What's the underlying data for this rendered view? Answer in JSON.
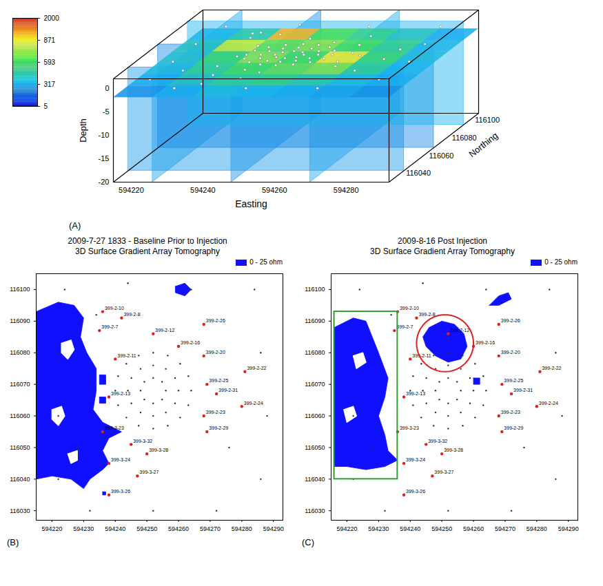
{
  "chart_data": [
    {
      "type": "fence3d",
      "panel": "(A)",
      "x_label": "Easting",
      "y_label": "Northing",
      "z_label": "Depth",
      "xlim": [
        594215,
        594292
      ],
      "ylim": [
        116030,
        116108
      ],
      "zlim": [
        -20,
        2
      ],
      "xticks": [
        594220,
        594240,
        594260,
        594280
      ],
      "yticks": [
        116040,
        116060,
        116080,
        116100
      ],
      "zticks": [
        0,
        -5,
        -10,
        -15,
        -20
      ],
      "colorbar": {
        "range": [
          5,
          2000
        ],
        "ticks": [
          5,
          317,
          593,
          871,
          2000
        ],
        "colors": [
          "#0a14c8",
          "#19b4f0",
          "#3cdc5a",
          "#f0f028",
          "#e61e0a"
        ]
      },
      "vertical_slices": [
        {
          "axis": "x",
          "at": 594226,
          "value": 280
        },
        {
          "axis": "x",
          "at": 594248,
          "value": 240
        },
        {
          "axis": "x",
          "at": 594270,
          "value": 300
        },
        {
          "axis": "y",
          "at": 116043,
          "value": 260
        },
        {
          "axis": "y",
          "at": 116069,
          "value": 230
        },
        {
          "axis": "y",
          "at": 116095,
          "value": 320
        }
      ],
      "horizontal_slice": {
        "depth": -2,
        "x_edges": [
          594215,
          594226,
          594237,
          594248,
          594259,
          594270,
          594281,
          594292
        ],
        "y_edges": [
          116030,
          116043,
          116056,
          116069,
          116082,
          116095,
          116108
        ],
        "values": [
          [
            250,
            300,
            350,
            320,
            300,
            280,
            250
          ],
          [
            300,
            400,
            480,
            520,
            450,
            350,
            300
          ],
          [
            350,
            500,
            600,
            650,
            700,
            480,
            320
          ],
          [
            380,
            550,
            700,
            600,
            900,
            550,
            350
          ],
          [
            400,
            800,
            650,
            700,
            600,
            500,
            330
          ],
          [
            330,
            450,
            1200,
            600,
            500,
            400,
            300
          ]
        ]
      }
    },
    {
      "type": "map",
      "panel": "(B)",
      "title": "2009-7-27 1833 - Baseline Prior to Injection",
      "subtitle": "3D Surface Gradient Array Tomography",
      "legend": "top",
      "legend_label": "0 - 25 ohm",
      "color": "#1010ff",
      "xlim": [
        594215,
        594293
      ],
      "ylim": [
        116027,
        116105
      ],
      "xticks": [
        594220,
        594230,
        594240,
        594250,
        594260,
        594270,
        594280,
        594290
      ],
      "yticks": [
        116030,
        116040,
        116050,
        116060,
        116070,
        116080,
        116090,
        116100
      ],
      "anomalies": [
        [
          [
            594215,
            116093
          ],
          [
            594222,
            116096
          ],
          [
            594227,
            116095
          ],
          [
            594230,
            116091
          ],
          [
            594229,
            116085
          ],
          [
            594231,
            116080
          ],
          [
            594234,
            116075
          ],
          [
            594234,
            116068
          ],
          [
            594233,
            116062
          ],
          [
            594236,
            116058
          ],
          [
            594242,
            116055
          ],
          [
            594238,
            116053
          ],
          [
            594236,
            116049
          ],
          [
            594238,
            116045
          ],
          [
            594236,
            116043
          ],
          [
            594232,
            116040
          ],
          [
            594230,
            116037
          ],
          [
            594226,
            116040
          ],
          [
            594220,
            116041
          ],
          [
            594215,
            116040
          ]
        ],
        [
          [
            594235,
            116073
          ],
          [
            594237,
            116073
          ],
          [
            594237,
            116070
          ],
          [
            594235,
            116070
          ]
        ],
        [
          [
            594235,
            116066
          ],
          [
            594237,
            116066
          ],
          [
            594237,
            116064
          ],
          [
            594235,
            116064
          ]
        ],
        [
          [
            594259,
            116101
          ],
          [
            594262,
            116102
          ],
          [
            594264,
            116100
          ],
          [
            594262,
            116098
          ],
          [
            594259,
            116099
          ]
        ],
        [
          [
            594236,
            116036
          ],
          [
            594237,
            116036
          ],
          [
            594237,
            116035
          ],
          [
            594236,
            116035
          ]
        ]
      ],
      "holes": [
        [
          [
            594223,
            116083
          ],
          [
            594226,
            116084
          ],
          [
            594227,
            116081
          ],
          [
            594225,
            116078
          ],
          [
            594223,
            116080
          ]
        ],
        [
          [
            594220,
            116062
          ],
          [
            594223,
            116063
          ],
          [
            594224,
            116060
          ],
          [
            594222,
            116057
          ],
          [
            594220,
            116059
          ]
        ],
        [
          [
            594225,
            116048
          ],
          [
            594228,
            116049
          ],
          [
            594228,
            116046
          ],
          [
            594226,
            116045
          ]
        ]
      ]
    },
    {
      "type": "map",
      "panel": "(C)",
      "title": "2009-8-16 Post Injection",
      "subtitle": "3D Surface Gradient Array Tomography",
      "legend": "top",
      "legend_label": "0 - 25 ohm",
      "color": "#1010ff",
      "xlim": [
        594215,
        594293
      ],
      "ylim": [
        116027,
        116105
      ],
      "xticks": [
        594220,
        594230,
        594240,
        594250,
        594260,
        594270,
        594280,
        594290
      ],
      "yticks": [
        116030,
        116040,
        116050,
        116060,
        116070,
        116080,
        116090,
        116100
      ],
      "anomalies": [
        [
          [
            594216,
            116088
          ],
          [
            594222,
            116091
          ],
          [
            594226,
            116090
          ],
          [
            594228,
            116085
          ],
          [
            594230,
            116080
          ],
          [
            594233,
            116072
          ],
          [
            594232,
            116066
          ],
          [
            594230,
            116060
          ],
          [
            594232,
            116054
          ],
          [
            594233,
            116049
          ],
          [
            594236,
            116046
          ],
          [
            594232,
            116044
          ],
          [
            594226,
            116043
          ],
          [
            594220,
            116044
          ],
          [
            594216,
            116044
          ]
        ],
        [
          [
            594246,
            116088
          ],
          [
            594250,
            116090
          ],
          [
            594254,
            116089
          ],
          [
            594257,
            116086
          ],
          [
            594258,
            116082
          ],
          [
            594256,
            116078
          ],
          [
            594252,
            116077
          ],
          [
            594248,
            116079
          ],
          [
            594245,
            116082
          ],
          [
            594244,
            116085
          ]
        ],
        [
          [
            594265,
            116095
          ],
          [
            594268,
            116098
          ],
          [
            594271,
            116099
          ],
          [
            594272,
            116097
          ],
          [
            594268,
            116095
          ]
        ],
        [
          [
            594260,
            116072
          ],
          [
            594262,
            116072
          ],
          [
            594262,
            116070
          ],
          [
            594260,
            116070
          ]
        ]
      ],
      "holes": [
        [
          [
            594222,
            116079
          ],
          [
            594225,
            116080
          ],
          [
            594226,
            116077
          ],
          [
            594223,
            116075
          ]
        ],
        [
          [
            594219,
            116062
          ],
          [
            594222,
            116063
          ],
          [
            594223,
            116060
          ],
          [
            594220,
            116058
          ]
        ]
      ],
      "box": {
        "x": [
          594216,
          594236
        ],
        "y": [
          116040,
          116093
        ],
        "color": "#2ca02c"
      },
      "circle": {
        "center": [
          594251,
          116083
        ],
        "radius": 9,
        "color": "#e02020"
      }
    }
  ],
  "electrodes": [
    [
      594256,
      116068
    ],
    [
      594254.8,
      116070.8
    ],
    [
      594252,
      116072
    ],
    [
      594249.2,
      116070.8
    ],
    [
      594248,
      116068
    ],
    [
      594249.2,
      116065.2
    ],
    [
      594252,
      116064
    ],
    [
      594254.8,
      116065.2
    ],
    [
      594260,
      116068
    ],
    [
      594258.9,
      116072
    ],
    [
      594256,
      116074.9
    ],
    [
      594252,
      116076
    ],
    [
      594248,
      116074.9
    ],
    [
      594245.1,
      116072
    ],
    [
      594244,
      116068
    ],
    [
      594245.1,
      116064
    ],
    [
      594248,
      116061.1
    ],
    [
      594252,
      116060
    ],
    [
      594256,
      116061.1
    ],
    [
      594258.9,
      116064
    ],
    [
      594264,
      116068
    ],
    [
      594263.1,
      116072.6
    ],
    [
      594260.5,
      116076.5
    ],
    [
      594256.6,
      116079.1
    ],
    [
      594252,
      116080
    ],
    [
      594247.4,
      116079.1
    ],
    [
      594243.5,
      116076.5
    ],
    [
      594240.9,
      116072.6
    ],
    [
      594240,
      116068
    ],
    [
      594240.9,
      116063.4
    ],
    [
      594243.5,
      116059.5
    ],
    [
      594247.4,
      116056.9
    ],
    [
      594252,
      116056
    ],
    [
      594256.6,
      116056.9
    ],
    [
      594260.5,
      116059.5
    ],
    [
      594263.1,
      116063.4
    ],
    [
      594224,
      116100
    ],
    [
      594244,
      116102
    ],
    [
      594264,
      116100
    ],
    [
      594284,
      116100
    ],
    [
      594222,
      116080
    ],
    [
      594286,
      116080
    ],
    [
      594222,
      116060
    ],
    [
      594288,
      116060
    ],
    [
      594222,
      116040
    ],
    [
      594286,
      116040
    ],
    [
      594232,
      116030
    ],
    [
      594252,
      116030
    ],
    [
      594272,
      116030
    ],
    [
      594234,
      116092
    ],
    [
      594276,
      116050
    ],
    [
      594228,
      116050
    ]
  ],
  "wells": [
    {
      "name": "399-2-10",
      "x": 594236,
      "y": 116093
    },
    {
      "name": "399-2-8",
      "x": 594242,
      "y": 116091
    },
    {
      "name": "399-2-7",
      "x": 594235,
      "y": 116087
    },
    {
      "name": "399-2-12",
      "x": 594252,
      "y": 116086
    },
    {
      "name": "399-2-26",
      "x": 594268,
      "y": 116089
    },
    {
      "name": "399-2-16",
      "x": 594260,
      "y": 116082
    },
    {
      "name": "399-2-20",
      "x": 594268,
      "y": 116079
    },
    {
      "name": "399-2-22",
      "x": 594281,
      "y": 116074
    },
    {
      "name": "399-2-25",
      "x": 594269,
      "y": 116070
    },
    {
      "name": "399-2-31",
      "x": 594272,
      "y": 116067
    },
    {
      "name": "399-2-24",
      "x": 594280,
      "y": 116063
    },
    {
      "name": "399-2-23",
      "x": 594268,
      "y": 116060
    },
    {
      "name": "399-2-29",
      "x": 594269,
      "y": 116055
    },
    {
      "name": "399-2-11",
      "x": 594240,
      "y": 116078
    },
    {
      "name": "399-2-13",
      "x": 594238,
      "y": 116066
    },
    {
      "name": "399-3-23",
      "x": 594236,
      "y": 116055
    },
    {
      "name": "399-3-32",
      "x": 594245,
      "y": 116051
    },
    {
      "name": "399-3-28",
      "x": 594250,
      "y": 116048
    },
    {
      "name": "399-3-24",
      "x": 594238,
      "y": 116045
    },
    {
      "name": "399-3-27",
      "x": 594247,
      "y": 116041
    },
    {
      "name": "399-3-26",
      "x": 594238,
      "y": 116035
    }
  ]
}
